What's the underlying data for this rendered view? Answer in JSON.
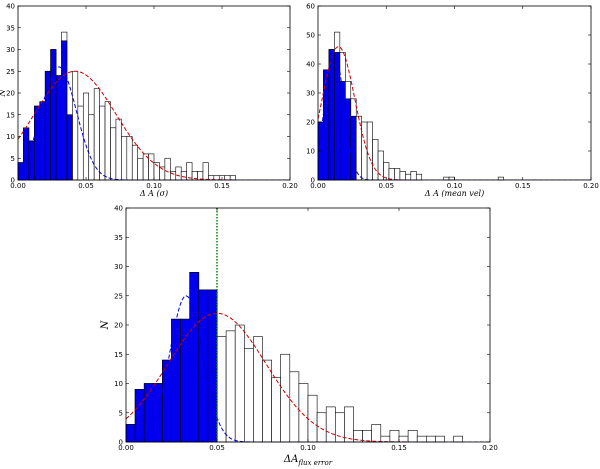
{
  "chart_data": [
    {
      "type": "bar",
      "panel": "top-left",
      "xlabel": "Δ A (σ)",
      "ylabel": "N",
      "xlim": [
        0,
        0.2
      ],
      "ylim": [
        0,
        40
      ],
      "xticks": [
        "0.00",
        "0.05",
        "0.10",
        "0.15",
        "0.20"
      ],
      "yticks": [
        "0",
        "5",
        "10",
        "15",
        "20",
        "25",
        "30",
        "35",
        "40"
      ],
      "bin_start": 0.0,
      "bin_width": 0.004,
      "series": [
        {
          "fill": "none",
          "color": "#000000",
          "values": [
            4,
            12,
            9,
            17,
            18,
            25,
            30,
            24,
            34,
            15,
            25,
            17,
            20,
            15,
            21,
            17,
            18,
            12,
            14,
            10,
            10,
            8,
            5,
            6,
            6,
            4,
            3,
            5,
            2,
            3,
            2,
            4,
            2,
            2,
            4,
            1,
            1,
            1,
            1,
            1
          ]
        },
        {
          "fill": "#0000ee",
          "color": "#000000",
          "values": [
            4,
            12,
            9,
            17,
            18,
            25,
            30,
            24,
            32,
            15
          ]
        }
      ],
      "curves": [
        {
          "color": "#cc0000",
          "style": "dashed",
          "type": "gaussian",
          "peak": 25,
          "mean": 0.042,
          "sigma": 0.03
        },
        {
          "color": "#0000cc",
          "style": "dashed",
          "type": "gaussian",
          "peak": 26,
          "mean": 0.03,
          "sigma": 0.013
        }
      ]
    },
    {
      "type": "bar",
      "panel": "top-right",
      "xlabel": "Δ A (mean vel)",
      "ylabel": "",
      "xlim": [
        0,
        0.2
      ],
      "ylim": [
        0,
        60
      ],
      "xticks": [
        "0.00",
        "0.05",
        "0.10",
        "0.15",
        "0.20"
      ],
      "yticks": [
        "0",
        "10",
        "20",
        "30",
        "40",
        "50",
        "60"
      ],
      "bin_start": 0.0,
      "bin_width": 0.004,
      "series": [
        {
          "fill": "none",
          "color": "#000000",
          "values": [
            20,
            38,
            45,
            51,
            44,
            34,
            28,
            22,
            20,
            20,
            14,
            10,
            6,
            4,
            4,
            3,
            2,
            3,
            2,
            0,
            0,
            0,
            0,
            1,
            1,
            0,
            0,
            0,
            0,
            0,
            0,
            0,
            0,
            1
          ]
        },
        {
          "fill": "#0000ee",
          "color": "#000000",
          "values": [
            20,
            38,
            45,
            44,
            34,
            28,
            22
          ]
        }
      ],
      "curves": [
        {
          "color": "#cc0000",
          "style": "dashed",
          "type": "gaussian",
          "peak": 46,
          "mean": 0.015,
          "sigma": 0.012
        },
        {
          "color": "#0000cc",
          "style": "dashed",
          "type": "gaussian",
          "peak": 44,
          "mean": 0.012,
          "sigma": 0.007
        }
      ]
    },
    {
      "type": "bar",
      "panel": "bottom",
      "xlabel": "ΔA",
      "xlabel_sub": "flux error",
      "ylabel": "N",
      "xlim": [
        0,
        0.2
      ],
      "ylim": [
        0,
        40
      ],
      "xticks": [
        "0.00",
        "0.05",
        "0.10",
        "0.15",
        "0.20"
      ],
      "yticks": [
        "0",
        "5",
        "10",
        "15",
        "20",
        "25",
        "30",
        "35",
        "40"
      ],
      "bin_start": 0.0,
      "bin_width": 0.005,
      "series": [
        {
          "fill": "none",
          "color": "#000000",
          "values": [
            3,
            9,
            10,
            10,
            14,
            21,
            21,
            29,
            26,
            26,
            18,
            19,
            20,
            16,
            18,
            14,
            11,
            15,
            12,
            10,
            8,
            5,
            6,
            5,
            6,
            2,
            2,
            3,
            1,
            2,
            1,
            2,
            1,
            1,
            1,
            0,
            1
          ]
        },
        {
          "fill": "#0000ee",
          "color": "#000000",
          "values": [
            3,
            9,
            10,
            10,
            14,
            21,
            21,
            29,
            26,
            26
          ]
        }
      ],
      "curves": [
        {
          "color": "#cc0000",
          "style": "dashed",
          "type": "gaussian",
          "peak": 22,
          "mean": 0.05,
          "sigma": 0.027
        },
        {
          "color": "#0000cc",
          "style": "dashed",
          "type": "gaussian",
          "peak": 25,
          "mean": 0.033,
          "sigma": 0.009
        }
      ],
      "vline": {
        "x": 0.05,
        "color": "#008800",
        "style": "dotted"
      }
    }
  ]
}
